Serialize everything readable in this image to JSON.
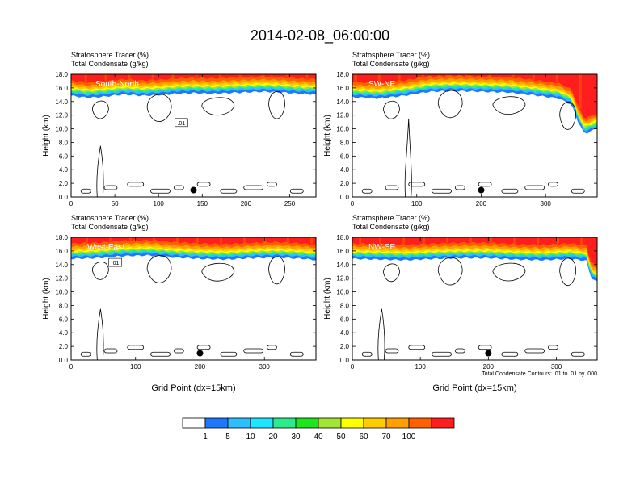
{
  "title": "2014-02-08_06:00:00",
  "palette": [
    "#ffffff",
    "#1e78ff",
    "#2dbeff",
    "#1ee6ff",
    "#2ceb8c",
    "#1ee61e",
    "#a0e632",
    "#ffff00",
    "#ffcc00",
    "#ffa000",
    "#ff6000",
    "#ff1e1e"
  ],
  "panel_header": {
    "line1": "Stratosphere Tracer   (%)",
    "line2": "Total Condensate   (g/kg)"
  },
  "axis": {
    "ylabel": "Height (km)",
    "xlabel": "Grid Point (dx=15km)",
    "y_ticks": [
      "0.0",
      "2.0",
      "4.0",
      "6.0",
      "8.0",
      "10.0",
      "12.0",
      "14.0",
      "16.0",
      "18.0"
    ]
  },
  "contour_note": "Total Condensate Contours: .01 to .01 by .000",
  "colorbar": {
    "labels": [
      "1",
      "5",
      "10",
      "20",
      "30",
      "40",
      "50",
      "60",
      "70",
      "100"
    ]
  },
  "chart_data": [
    {
      "type": "heatmap",
      "name": "South-North",
      "panel_label": "South-North",
      "xlim": [
        0,
        280
      ],
      "ylim": [
        0,
        18
      ],
      "x_ticks": [
        0,
        50,
        100,
        150,
        200,
        250
      ],
      "tropopause_km": [
        [
          0,
          15.2
        ],
        [
          20,
          14.9
        ],
        [
          40,
          15.1
        ],
        [
          60,
          15.4
        ],
        [
          80,
          15.2
        ],
        [
          100,
          15.3
        ],
        [
          120,
          15.5
        ],
        [
          140,
          15.6
        ],
        [
          160,
          15.5
        ],
        [
          180,
          15.6
        ],
        [
          200,
          15.7
        ],
        [
          220,
          15.8
        ],
        [
          240,
          15.7
        ],
        [
          260,
          15.5
        ],
        [
          280,
          15.4
        ]
      ],
      "contour_label": ".01",
      "point_marker": [
        140,
        1.0
      ]
    },
    {
      "type": "heatmap",
      "name": "SW-NE",
      "panel_label": "SW-NE",
      "xlim": [
        0,
        380
      ],
      "ylim": [
        0,
        18
      ],
      "x_ticks": [
        0,
        100,
        200,
        300
      ],
      "tropopause_km": [
        [
          0,
          15.0
        ],
        [
          40,
          14.8
        ],
        [
          80,
          15.2
        ],
        [
          120,
          15.8
        ],
        [
          160,
          15.9
        ],
        [
          200,
          15.8
        ],
        [
          240,
          15.7
        ],
        [
          280,
          15.3
        ],
        [
          320,
          14.8
        ],
        [
          340,
          13.9
        ],
        [
          350,
          11.5
        ],
        [
          360,
          9.6
        ],
        [
          370,
          10.0
        ],
        [
          380,
          10.4
        ]
      ],
      "point_marker": [
        200,
        1.0
      ]
    },
    {
      "type": "heatmap",
      "name": "West-East",
      "panel_label": "West-East",
      "xlim": [
        0,
        380
      ],
      "ylim": [
        0,
        18
      ],
      "x_ticks": [
        0,
        100,
        200,
        300
      ],
      "tropopause_km": [
        [
          0,
          15.2
        ],
        [
          40,
          15.3
        ],
        [
          80,
          15.6
        ],
        [
          120,
          15.7
        ],
        [
          160,
          15.4
        ],
        [
          200,
          15.2
        ],
        [
          240,
          15.1
        ],
        [
          280,
          15.3
        ],
        [
          320,
          15.4
        ],
        [
          360,
          15.2
        ],
        [
          380,
          15.0
        ]
      ],
      "contour_label": ".01",
      "point_marker": [
        200,
        1.0
      ]
    },
    {
      "type": "heatmap",
      "name": "NW-SE",
      "panel_label": "NW-SE",
      "xlim": [
        0,
        360
      ],
      "ylim": [
        0,
        18
      ],
      "x_ticks": [
        0,
        100,
        200,
        300
      ],
      "tropopause_km": [
        [
          0,
          15.2
        ],
        [
          40,
          15.1
        ],
        [
          80,
          15.0
        ],
        [
          120,
          15.2
        ],
        [
          160,
          15.3
        ],
        [
          200,
          15.3
        ],
        [
          240,
          15.1
        ],
        [
          280,
          15.0
        ],
        [
          320,
          15.2
        ],
        [
          345,
          14.9
        ],
        [
          350,
          12.5
        ],
        [
          360,
          11.8
        ]
      ],
      "point_marker": [
        200,
        1.0
      ]
    }
  ]
}
